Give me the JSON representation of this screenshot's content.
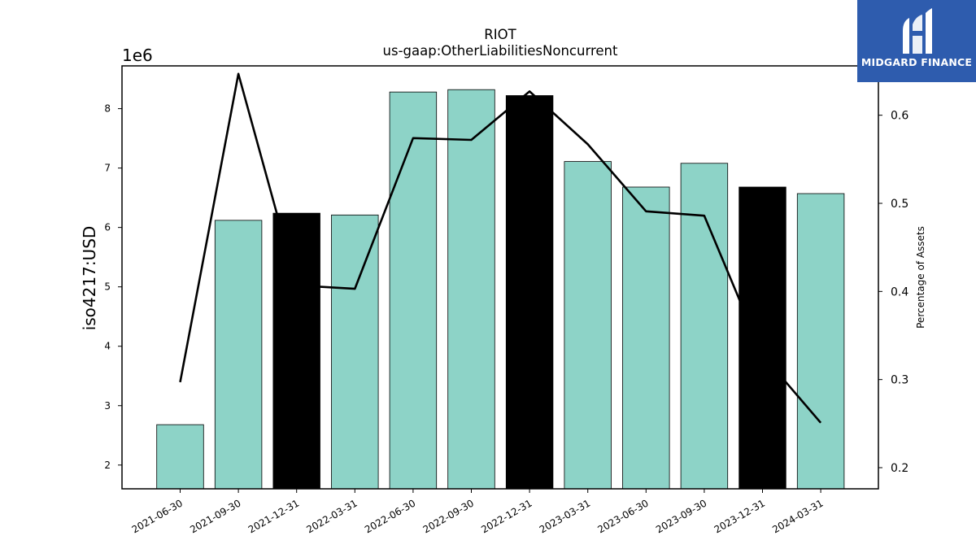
{
  "brand": {
    "name": "MIDGARD FINANCE",
    "color": "#2e5cae"
  },
  "chart_data": {
    "type": "bar",
    "title": "RIOT",
    "subtitle": "us-gaap:OtherLiabilitiesNoncurrent",
    "ylabel": "iso4217:USD",
    "y_multiplier_label": "1e6",
    "y2label": "Percentage of Assets",
    "categories": [
      "2021-06-30",
      "2021-09-30",
      "2021-12-31",
      "2022-03-31",
      "2022-06-30",
      "2022-09-30",
      "2022-12-31",
      "2023-03-31",
      "2023-06-30",
      "2023-09-30",
      "2023-12-31",
      "2024-03-31"
    ],
    "series": [
      {
        "type": "bar",
        "axis": "left",
        "values": [
          2.68,
          6.12,
          6.24,
          6.21,
          8.28,
          8.32,
          8.22,
          7.11,
          6.68,
          7.08,
          6.68,
          6.57
        ],
        "colors": [
          "#8dd3c7",
          "#8dd3c7",
          "#000000",
          "#8dd3c7",
          "#8dd3c7",
          "#8dd3c7",
          "#000000",
          "#8dd3c7",
          "#8dd3c7",
          "#8dd3c7",
          "#000000",
          "#8dd3c7"
        ]
      },
      {
        "type": "line",
        "axis": "right",
        "color": "#000000",
        "values": [
          0.297,
          0.647,
          0.407,
          0.403,
          0.574,
          0.572,
          0.627,
          0.567,
          0.491,
          0.486,
          0.328,
          0.251
        ]
      }
    ],
    "ylim": [
      1.6,
      8.72
    ],
    "y_ticks": [
      2,
      3,
      4,
      5,
      6,
      7,
      8
    ],
    "y2lim": [
      0.176,
      0.656
    ],
    "y2_ticks": [
      0.2,
      0.3,
      0.4,
      0.5,
      0.6
    ],
    "grid": false,
    "legend": "none"
  }
}
